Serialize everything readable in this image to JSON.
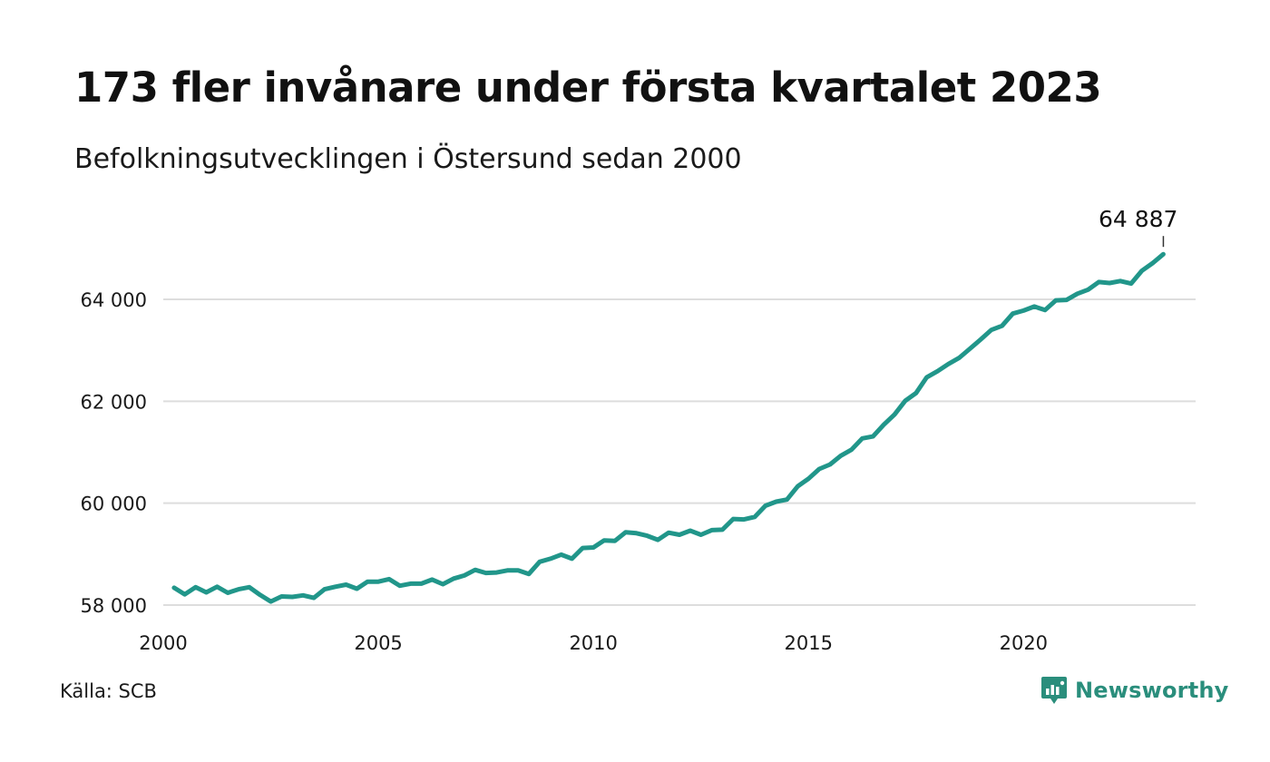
{
  "title": "173 fler invånare under första kvartalet 2023",
  "subtitle": "Befolkningsutvecklingen i Östersund sedan 2000",
  "source": "Källa: SCB",
  "brand": {
    "name": "Newsworthy",
    "icon": "newsworthy-logo-icon",
    "color": "#2a8e7c"
  },
  "chart_data": {
    "type": "line",
    "title": "173 fler invånare under första kvartalet 2023",
    "subtitle": "Befolkningsutvecklingen i Östersund sedan 2000",
    "xlabel": "",
    "ylabel": "",
    "xlim": [
      2000,
      2024
    ],
    "ylim": [
      58000,
      65000
    ],
    "x_ticks": [
      2000,
      2005,
      2010,
      2015,
      2020
    ],
    "x_tick_labels": [
      "2000",
      "2005",
      "2010",
      "2015",
      "2020"
    ],
    "y_ticks": [
      58000,
      60000,
      62000,
      64000
    ],
    "y_tick_labels": [
      "58 000",
      "60 000",
      "62 000",
      "64 000"
    ],
    "grid": "horizontal",
    "line_color": "#21968a",
    "end_label": "64 887",
    "series": [
      {
        "x_start": 2000.25,
        "x_step": 0.25,
        "values": [
          58340,
          58210,
          58350,
          58250,
          58360,
          58240,
          58310,
          58350,
          58200,
          58070,
          58170,
          58160,
          58190,
          58140,
          58310,
          58360,
          58400,
          58320,
          58460,
          58460,
          58510,
          58380,
          58420,
          58420,
          58500,
          58410,
          58520,
          58580,
          58690,
          58630,
          58640,
          58680,
          58680,
          58610,
          58850,
          58910,
          58990,
          58910,
          59120,
          59130,
          59270,
          59260,
          59430,
          59410,
          59360,
          59280,
          59420,
          59380,
          59460,
          59380,
          59470,
          59480,
          59690,
          59680,
          59730,
          59950,
          60030,
          60070,
          60330,
          60480,
          60670,
          60760,
          60930,
          61050,
          61270,
          61310,
          61540,
          61740,
          62010,
          62160,
          62470,
          62590,
          62730,
          62850,
          63030,
          63210,
          63400,
          63480,
          63720,
          63780,
          63860,
          63790,
          63980,
          63990,
          64110,
          64190,
          64340,
          64320,
          64360,
          64310,
          64560,
          64710,
          64887
        ]
      }
    ]
  }
}
